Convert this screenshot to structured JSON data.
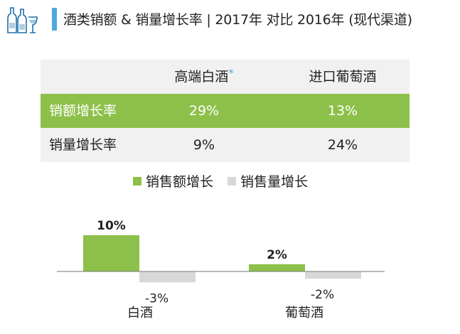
{
  "header": {
    "title": "酒类销额 & 销量增长率 | 2017年 对比 2016年 (现代渠道)",
    "icon": "wine-bottles-glass-icon",
    "accent_color": "#4ea8e0"
  },
  "table": {
    "columns": [
      "",
      "高端白酒",
      "进口葡萄酒"
    ],
    "header_mark": "*",
    "rows": [
      {
        "label": "销额增长率",
        "values": [
          "29%",
          "13%"
        ]
      },
      {
        "label": "销量增长率",
        "values": [
          "9%",
          "24%"
        ]
      }
    ],
    "highlight_color": "#8dc04a"
  },
  "chart_data": {
    "type": "bar",
    "categories": [
      "白酒",
      "葡萄酒"
    ],
    "series": [
      {
        "name": "销售额增长",
        "values": [
          10,
          2
        ],
        "labels": [
          "10%",
          "2%"
        ],
        "color": "#8dc04a"
      },
      {
        "name": "销售量增长",
        "values": [
          -3,
          -2
        ],
        "labels": [
          "-3%",
          "-2%"
        ],
        "color": "#d8d8d8"
      }
    ],
    "title": "",
    "xlabel": "",
    "ylabel": "",
    "ylim": [
      -3,
      10
    ],
    "grid": false,
    "legend_position": "top"
  }
}
